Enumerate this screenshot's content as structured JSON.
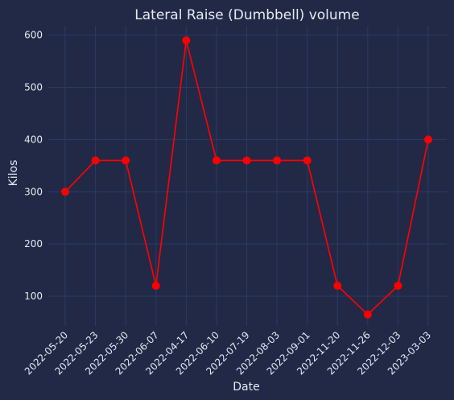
{
  "chart_data": {
    "type": "line",
    "title": "Lateral Raise (Dumbbell) volume",
    "xlabel": "Date",
    "ylabel": "Kilos",
    "categories": [
      "2022-05-20",
      "2022-05-23",
      "2022-05-30",
      "2022-06-07",
      "2022-04-17",
      "2022-06-10",
      "2022-07-19",
      "2022-08-03",
      "2022-09-01",
      "2022-11-20",
      "2022-11-26",
      "2022-12-03",
      "2023-03-03"
    ],
    "series": [
      {
        "values": [
          300,
          360,
          360,
          120,
          590,
          360,
          360,
          360,
          360,
          120,
          65,
          120,
          400
        ]
      }
    ],
    "ylim": [
      43,
      618
    ],
    "yticks": [
      100,
      200,
      300,
      400,
      500,
      600
    ],
    "grid": true,
    "colors": {
      "background": "#212946",
      "grid": "#2b3a66",
      "line": "#ff0000",
      "text": "#e6e9f2"
    }
  }
}
